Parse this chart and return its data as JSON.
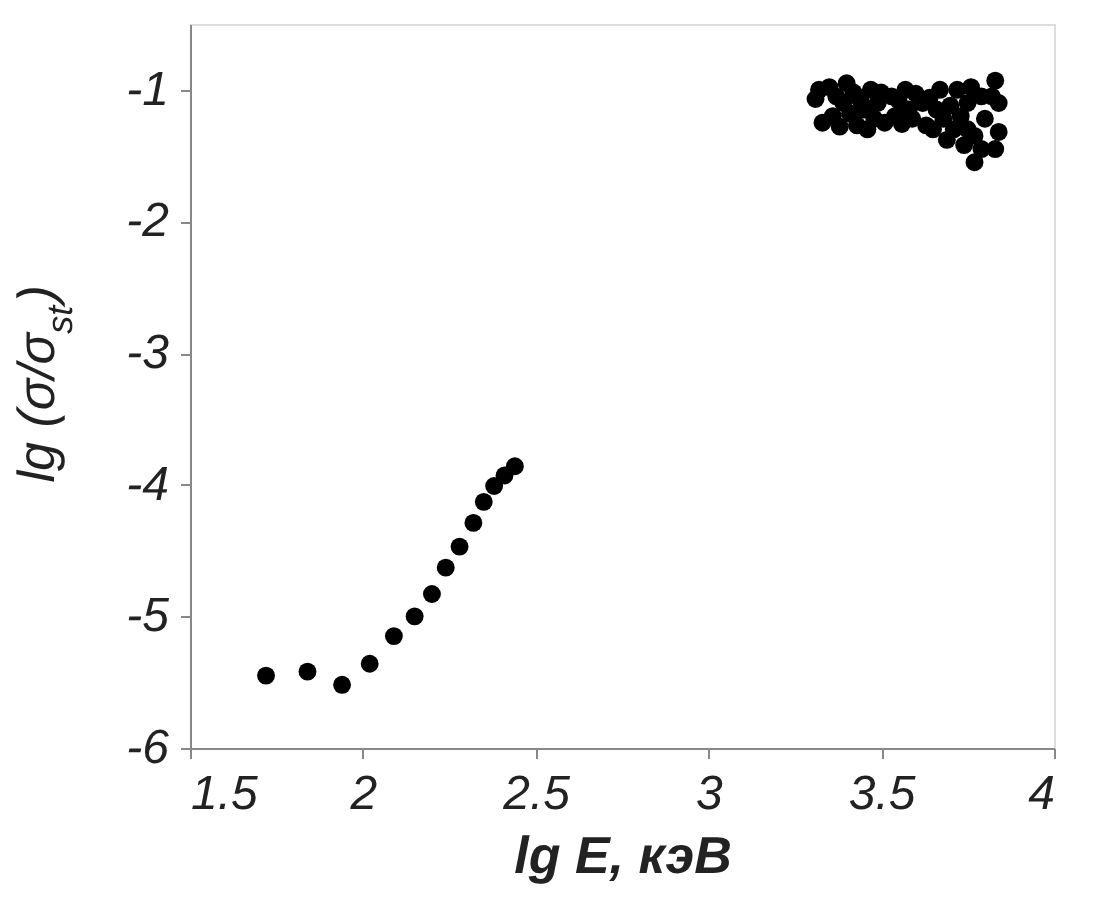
{
  "chart_data": {
    "type": "scatter",
    "xlabel": "lg E, кэВ",
    "ylabel": "lg (σ/σ$_{st}$)",
    "xlim": [
      1.5,
      4
    ],
    "ylim": [
      -6,
      -0.5
    ],
    "xticks": [
      1.5,
      2,
      2.5,
      3,
      3.5,
      4
    ],
    "yticks": [
      -6,
      -5,
      -4,
      -3,
      -2,
      -1
    ],
    "marker": "circle",
    "grid": false,
    "series": [
      {
        "color": "#000000",
        "x": [
          1.72,
          1.84,
          1.94,
          2.02,
          2.09,
          2.15,
          2.2,
          2.24,
          2.28,
          2.32,
          2.35,
          2.38,
          2.41,
          2.44
        ],
        "values": [
          -5.45,
          -5.42,
          -5.52,
          -5.36,
          -5.15,
          -5.0,
          -4.83,
          -4.63,
          -4.47,
          -4.29,
          -4.13,
          -4.01,
          -3.93,
          -3.86
        ]
      },
      {
        "color": "#000000",
        "x": [
          3.31,
          3.32,
          3.33,
          3.35,
          3.36,
          3.37,
          3.38,
          3.39,
          3.4,
          3.41,
          3.42,
          3.43,
          3.44,
          3.45,
          3.46,
          3.47,
          3.48,
          3.49,
          3.5,
          3.51,
          3.53,
          3.54,
          3.55,
          3.56,
          3.57,
          3.58,
          3.59,
          3.6,
          3.62,
          3.63,
          3.64,
          3.65,
          3.66,
          3.67,
          3.68,
          3.69,
          3.7,
          3.71,
          3.72,
          3.73,
          3.74,
          3.75,
          3.76,
          3.77,
          3.79,
          3.83,
          3.84,
          3.75,
          3.84,
          3.79,
          3.82,
          3.77,
          3.8,
          3.83
        ],
        "values": [
          -1.07,
          -1.0,
          -1.25,
          -0.98,
          -1.2,
          -1.05,
          -1.28,
          -1.1,
          -0.95,
          -1.18,
          -1.02,
          -1.27,
          -1.08,
          -1.15,
          -1.3,
          -1.0,
          -1.22,
          -1.1,
          -1.02,
          -1.25,
          -1.05,
          -1.2,
          -1.08,
          -1.26,
          -1.0,
          -1.15,
          -1.22,
          -1.03,
          -1.1,
          -1.27,
          -1.06,
          -1.3,
          -1.15,
          -1.0,
          -1.22,
          -1.38,
          -1.12,
          -1.3,
          -1.0,
          -1.2,
          -1.42,
          -1.1,
          -0.98,
          -1.55,
          -1.05,
          -1.45,
          -1.1,
          -1.3,
          -1.32,
          -1.45,
          -1.05,
          -1.35,
          -1.22,
          -0.93
        ]
      }
    ]
  }
}
